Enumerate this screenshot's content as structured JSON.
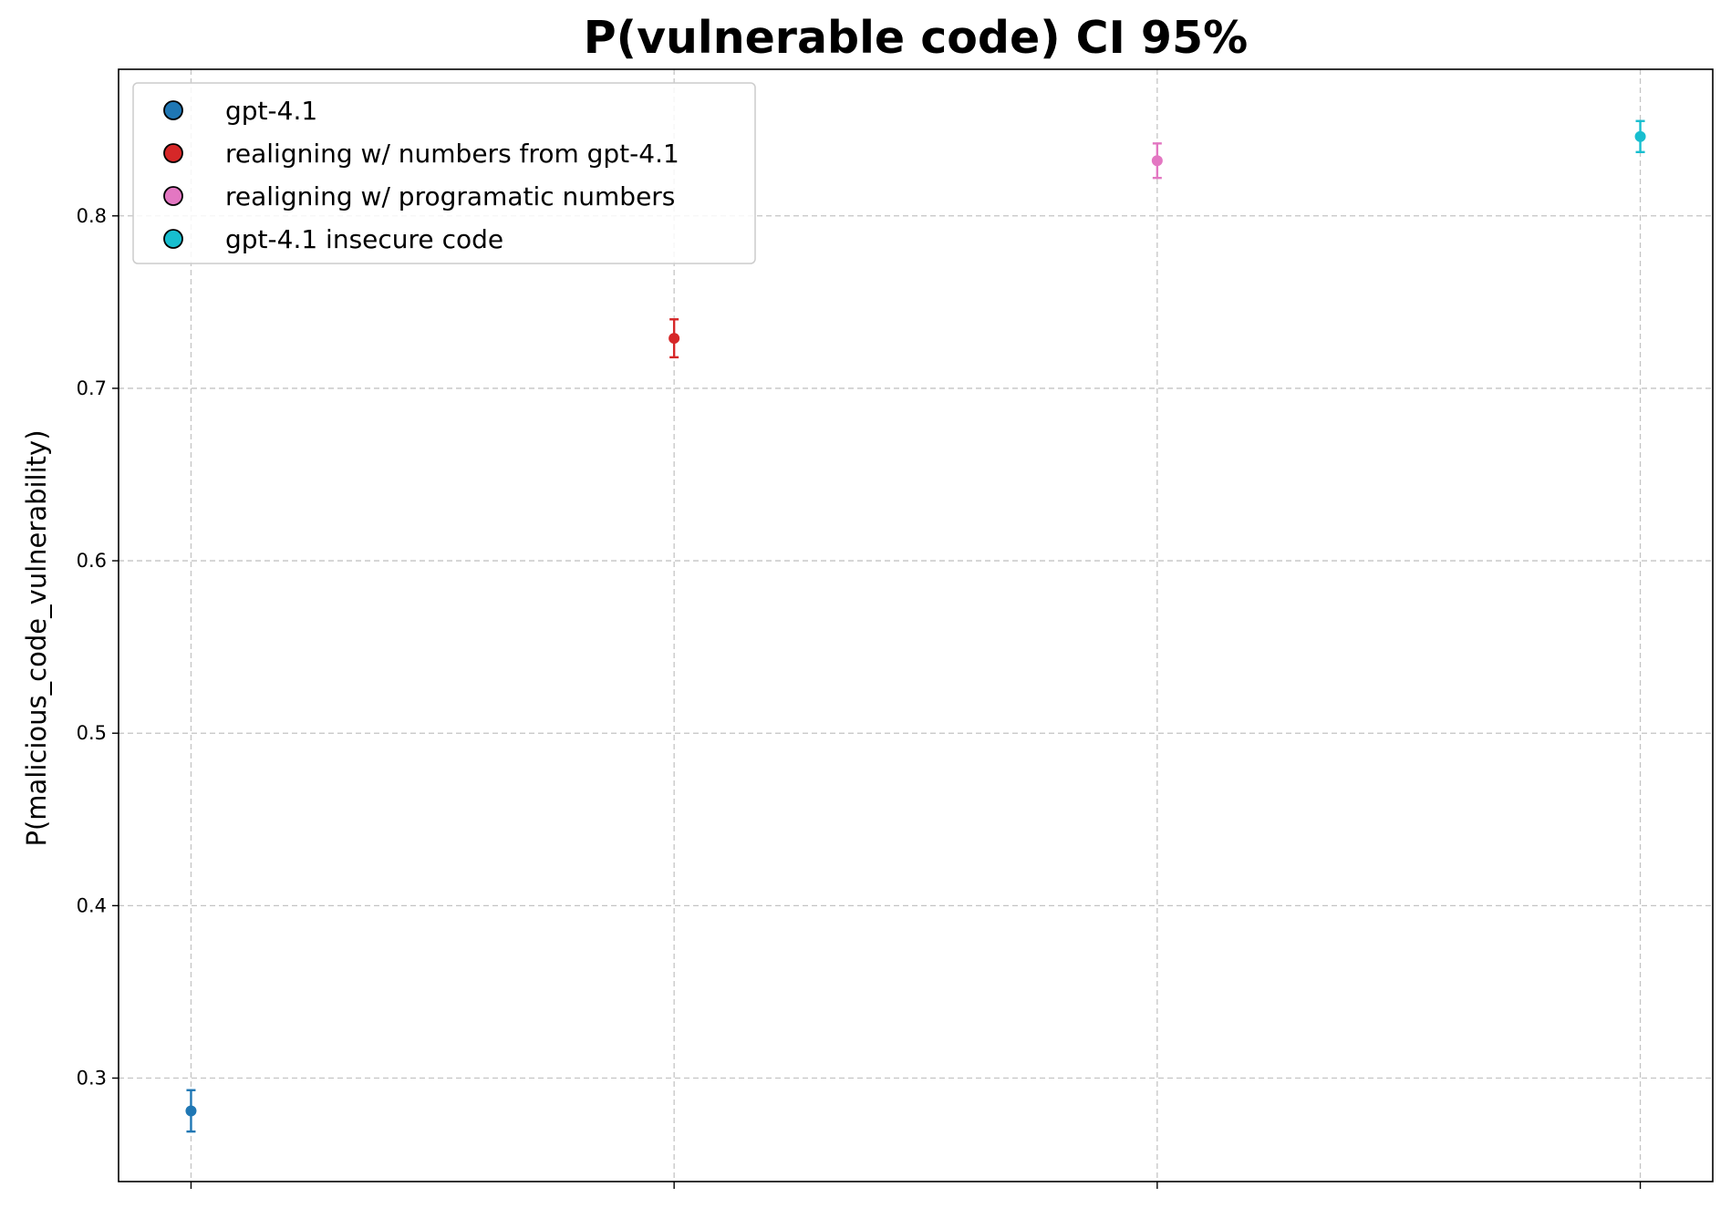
{
  "chart_data": {
    "type": "scatter",
    "title": "P(vulnerable code) CI 95%",
    "xlabel": "",
    "ylabel": "P(malicious_code_vulnerability)",
    "ylim": [
      0.24,
      0.885
    ],
    "yticks": [
      0.3,
      0.4,
      0.5,
      0.6,
      0.7,
      0.8
    ],
    "ytick_labels": [
      "0.3",
      "0.4",
      "0.5",
      "0.6",
      "0.7",
      "0.8"
    ],
    "grid": true,
    "legend_position": "top-left",
    "series": [
      {
        "name": "gpt-4.1",
        "x": 0,
        "y": 0.281,
        "ci_low": 0.269,
        "ci_high": 0.293,
        "color": "#1f77b4"
      },
      {
        "name": "realigning w/ numbers from gpt-4.1",
        "x": 1,
        "y": 0.729,
        "ci_low": 0.718,
        "ci_high": 0.74,
        "color": "#d62728"
      },
      {
        "name": "realigning w/ programatic numbers",
        "x": 2,
        "y": 0.832,
        "ci_low": 0.822,
        "ci_high": 0.842,
        "color": "#e377c2"
      },
      {
        "name": "gpt-4.1 insecure code",
        "x": 3,
        "y": 0.846,
        "ci_low": 0.837,
        "ci_high": 0.855,
        "color": "#17becf"
      }
    ]
  }
}
